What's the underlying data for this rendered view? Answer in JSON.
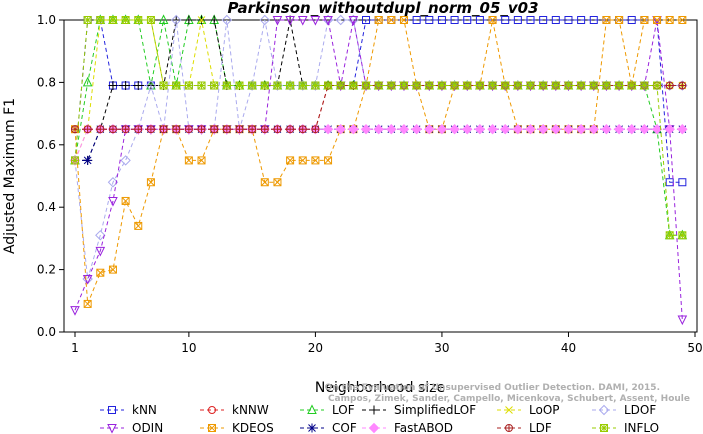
{
  "chart_data": {
    "type": "line",
    "title": "Parkinson_withoutdupl_norm_05_v03",
    "xlabel": "Neighborhood size",
    "ylabel": "Adjusted Maximum F1",
    "xlim": [
      0,
      50
    ],
    "ylim": [
      0,
      1
    ],
    "xticks": [
      "1",
      "10",
      "20",
      "30",
      "40",
      "50"
    ],
    "yticks": [
      "0.0",
      "0.2",
      "0.4",
      "0.6",
      "0.8",
      "1.0"
    ],
    "watermark": [
      "Campos, Zimek, Sander, Campello, Micenkova, Schubert, Assent, Houle",
      "On the Evaluation of Unsupervised Outlier Detection. DAMI, 2015."
    ],
    "x": [
      1,
      2,
      3,
      4,
      5,
      6,
      7,
      8,
      9,
      10,
      11,
      12,
      13,
      14,
      15,
      16,
      17,
      18,
      19,
      20,
      21,
      22,
      23,
      24,
      25,
      26,
      27,
      28,
      29,
      30,
      31,
      32,
      33,
      34,
      35,
      36,
      37,
      38,
      39,
      40,
      41,
      42,
      43,
      44,
      45,
      46,
      47,
      48,
      49
    ],
    "series": [
      {
        "name": "kNN",
        "color": "#2222dd",
        "marker": "square",
        "values": [
          0.55,
          1,
          1,
          0.79,
          0.79,
          0.79,
          0.79,
          0.79,
          0.79,
          0.79,
          0.79,
          0.79,
          0.79,
          0.79,
          0.79,
          0.79,
          0.79,
          0.79,
          0.79,
          0.79,
          0.79,
          0.79,
          0.79,
          1,
          1,
          1,
          1,
          1,
          1,
          1,
          1,
          1,
          1,
          1,
          1,
          1,
          1,
          1,
          1,
          1,
          1,
          1,
          1,
          1,
          1,
          1,
          1,
          0.48,
          0.48
        ]
      },
      {
        "name": "kNNW",
        "color": "#dd2222",
        "marker": "circle",
        "values": [
          0.65,
          0.65,
          0.65,
          0.65,
          0.65,
          0.65,
          0.65,
          0.65,
          0.65,
          0.65,
          0.65,
          0.65,
          0.65,
          0.65,
          0.65,
          0.65,
          0.65,
          0.65,
          0.65,
          0.65,
          0.79,
          0.79,
          0.79,
          0.79,
          0.79,
          0.79,
          0.79,
          0.79,
          0.79,
          0.79,
          0.79,
          0.79,
          0.79,
          0.79,
          0.79,
          0.79,
          0.79,
          0.79,
          0.79,
          0.79,
          0.79,
          0.79,
          0.79,
          0.79,
          0.79,
          0.79,
          0.79,
          0.79,
          0.79
        ]
      },
      {
        "name": "LOF",
        "color": "#22cc22",
        "marker": "triangle-up",
        "values": [
          0.55,
          0.8,
          1,
          1,
          1,
          1,
          0.79,
          1,
          0.79,
          1,
          1,
          1,
          0.79,
          0.79,
          0.79,
          0.79,
          0.79,
          0.79,
          0.79,
          0.79,
          0.79,
          0.79,
          0.79,
          0.79,
          0.79,
          0.79,
          0.79,
          0.79,
          0.79,
          0.79,
          0.79,
          0.79,
          0.79,
          0.79,
          0.79,
          0.79,
          0.79,
          0.79,
          0.79,
          0.79,
          0.79,
          0.79,
          0.79,
          0.79,
          0.79,
          0.79,
          0.65,
          0.31,
          0.31
        ]
      },
      {
        "name": "SimplifiedLOF",
        "color": "#000000",
        "marker": "plus",
        "values": [
          0.55,
          0.55,
          0.65,
          0.79,
          0.79,
          0.79,
          0.79,
          0.79,
          1,
          1,
          1,
          1,
          0.79,
          0.79,
          0.79,
          0.79,
          0.79,
          1,
          0.79,
          0.79,
          0.79,
          0.79,
          0.79,
          0.79,
          0.79,
          0.79,
          0.79,
          0.79,
          0.79,
          0.79,
          0.79,
          0.79,
          0.79,
          0.79,
          0.79,
          0.79,
          0.79,
          0.79,
          0.79,
          0.79,
          0.79,
          0.79,
          0.79,
          0.79,
          0.79,
          0.79,
          0.79,
          0.79,
          0.79
        ]
      },
      {
        "name": "LoOP",
        "color": "#dddd00",
        "marker": "x",
        "values": [
          0.55,
          0.65,
          1,
          1,
          1,
          1,
          1,
          0.79,
          0.79,
          0.79,
          1,
          0.79,
          0.79,
          0.79,
          0.79,
          0.79,
          0.79,
          0.79,
          0.79,
          0.79,
          0.79,
          0.79,
          0.79,
          0.79,
          0.79,
          0.79,
          0.79,
          0.79,
          0.79,
          0.79,
          0.79,
          0.79,
          0.79,
          0.79,
          0.79,
          0.79,
          0.79,
          0.79,
          0.79,
          0.79,
          0.79,
          0.79,
          0.79,
          0.79,
          0.79,
          0.79,
          0.79,
          0.79,
          0.79
        ]
      },
      {
        "name": "LDOF",
        "color": "#aaaaee",
        "marker": "diamond",
        "values": [
          0.55,
          0.17,
          0.31,
          0.48,
          0.55,
          0.65,
          0.79,
          0.65,
          1,
          0.65,
          0.65,
          0.65,
          1,
          0.65,
          0.79,
          1,
          0.79,
          0.79,
          0.79,
          0.79,
          1,
          1,
          1,
          0.79,
          0.79,
          0.79,
          0.79,
          0.79,
          0.79,
          0.79,
          0.79,
          0.79,
          0.79,
          0.79,
          0.79,
          0.79,
          0.79,
          0.79,
          0.79,
          0.79,
          0.79,
          0.79,
          0.79,
          0.79,
          0.79,
          0.79,
          0.79,
          0.79,
          0.79
        ]
      },
      {
        "name": "ODIN",
        "color": "#9922dd",
        "marker": "triangle-down",
        "values": [
          0.07,
          0.17,
          0.26,
          0.42,
          0.65,
          0.65,
          0.65,
          0.65,
          0.65,
          0.65,
          0.65,
          0.65,
          0.65,
          0.65,
          0.65,
          0.65,
          1,
          1,
          1,
          1,
          1,
          0.79,
          1,
          0.79,
          0.79,
          0.79,
          0.79,
          0.79,
          0.79,
          0.79,
          0.79,
          0.79,
          0.79,
          0.79,
          0.79,
          0.79,
          0.79,
          0.79,
          0.79,
          0.79,
          0.79,
          0.79,
          0.79,
          0.79,
          0.79,
          0.79,
          1,
          0.65,
          0.04
        ]
      },
      {
        "name": "KDEOS",
        "color": "#ee9900",
        "marker": "square-x",
        "values": [
          0.65,
          0.09,
          0.19,
          0.2,
          0.42,
          0.34,
          0.48,
          0.65,
          0.65,
          0.55,
          0.55,
          0.65,
          0.65,
          0.65,
          0.65,
          0.48,
          0.48,
          0.55,
          0.55,
          0.55,
          0.55,
          0.65,
          0.65,
          0.79,
          1,
          1,
          1,
          0.79,
          0.65,
          0.65,
          0.79,
          0.79,
          0.79,
          1,
          0.79,
          0.65,
          0.65,
          0.65,
          0.65,
          0.65,
          0.65,
          0.65,
          1,
          1,
          0.79,
          1,
          1,
          1,
          1
        ]
      },
      {
        "name": "COF",
        "color": "#000088",
        "marker": "asterisk",
        "values": [
          0.55,
          0.55,
          0.65,
          0.65,
          0.65,
          0.65,
          0.65,
          0.65,
          0.65,
          0.65,
          0.65,
          0.65,
          0.65,
          0.65,
          0.65,
          0.65,
          0.65,
          0.65,
          0.65,
          0.65,
          0.65,
          0.65,
          0.65,
          0.65,
          0.65,
          0.65,
          0.65,
          0.65,
          0.65,
          0.65,
          0.65,
          0.65,
          0.65,
          0.65,
          0.65,
          0.65,
          0.65,
          0.65,
          0.65,
          0.65,
          0.65,
          0.65,
          0.65,
          0.65,
          0.65,
          0.65,
          0.65,
          0.65,
          0.65
        ]
      },
      {
        "name": "FastABOD",
        "color": "#ff88ff",
        "marker": "diamond-filled",
        "values": [
          0.55,
          0.65,
          0.65,
          0.65,
          0.65,
          0.65,
          0.65,
          0.65,
          0.65,
          0.65,
          0.65,
          0.65,
          0.65,
          0.65,
          0.65,
          0.65,
          0.65,
          0.65,
          0.65,
          0.65,
          0.65,
          0.65,
          0.65,
          0.65,
          0.65,
          0.65,
          0.65,
          0.65,
          0.65,
          0.65,
          0.65,
          0.65,
          0.65,
          0.65,
          0.65,
          0.65,
          0.65,
          0.65,
          0.65,
          0.65,
          0.65,
          0.65,
          0.65,
          0.65,
          0.65,
          0.65,
          0.65,
          0.65,
          0.65
        ]
      },
      {
        "name": "LDF",
        "color": "#aa2222",
        "marker": "circle-plus",
        "values": [
          0.65,
          0.65,
          0.65,
          0.65,
          0.65,
          0.65,
          0.65,
          0.65,
          0.65,
          0.65,
          0.65,
          0.65,
          0.65,
          0.65,
          0.65,
          0.65,
          0.65,
          0.65,
          0.65,
          0.65,
          0.79,
          0.79,
          0.79,
          0.79,
          0.79,
          0.79,
          0.79,
          0.79,
          0.79,
          0.79,
          0.79,
          0.79,
          0.79,
          0.79,
          0.79,
          0.79,
          0.79,
          0.79,
          0.79,
          0.79,
          0.79,
          0.79,
          0.79,
          0.79,
          0.79,
          0.79,
          0.79,
          0.79,
          0.79
        ]
      },
      {
        "name": "INFLO",
        "color": "#99cc00",
        "marker": "square-asterisk",
        "values": [
          0.55,
          1,
          1,
          1,
          1,
          1,
          1,
          0.79,
          0.79,
          0.79,
          0.79,
          0.79,
          0.79,
          0.79,
          0.79,
          0.79,
          0.79,
          0.79,
          0.79,
          0.79,
          0.79,
          0.79,
          0.79,
          0.79,
          0.79,
          0.79,
          0.79,
          0.79,
          0.79,
          0.79,
          0.79,
          0.79,
          0.79,
          0.79,
          0.79,
          0.79,
          0.79,
          0.79,
          0.79,
          0.79,
          0.79,
          0.79,
          0.79,
          0.79,
          0.79,
          0.79,
          0.79,
          0.31,
          0.31
        ]
      }
    ],
    "legend_order": [
      "kNN",
      "kNNW",
      "LOF",
      "SimplifiedLOF",
      "LoOP",
      "LDOF",
      "ODIN",
      "KDEOS",
      "COF",
      "FastABOD",
      "LDF",
      "INFLO"
    ],
    "legend_placement": "bottom"
  }
}
